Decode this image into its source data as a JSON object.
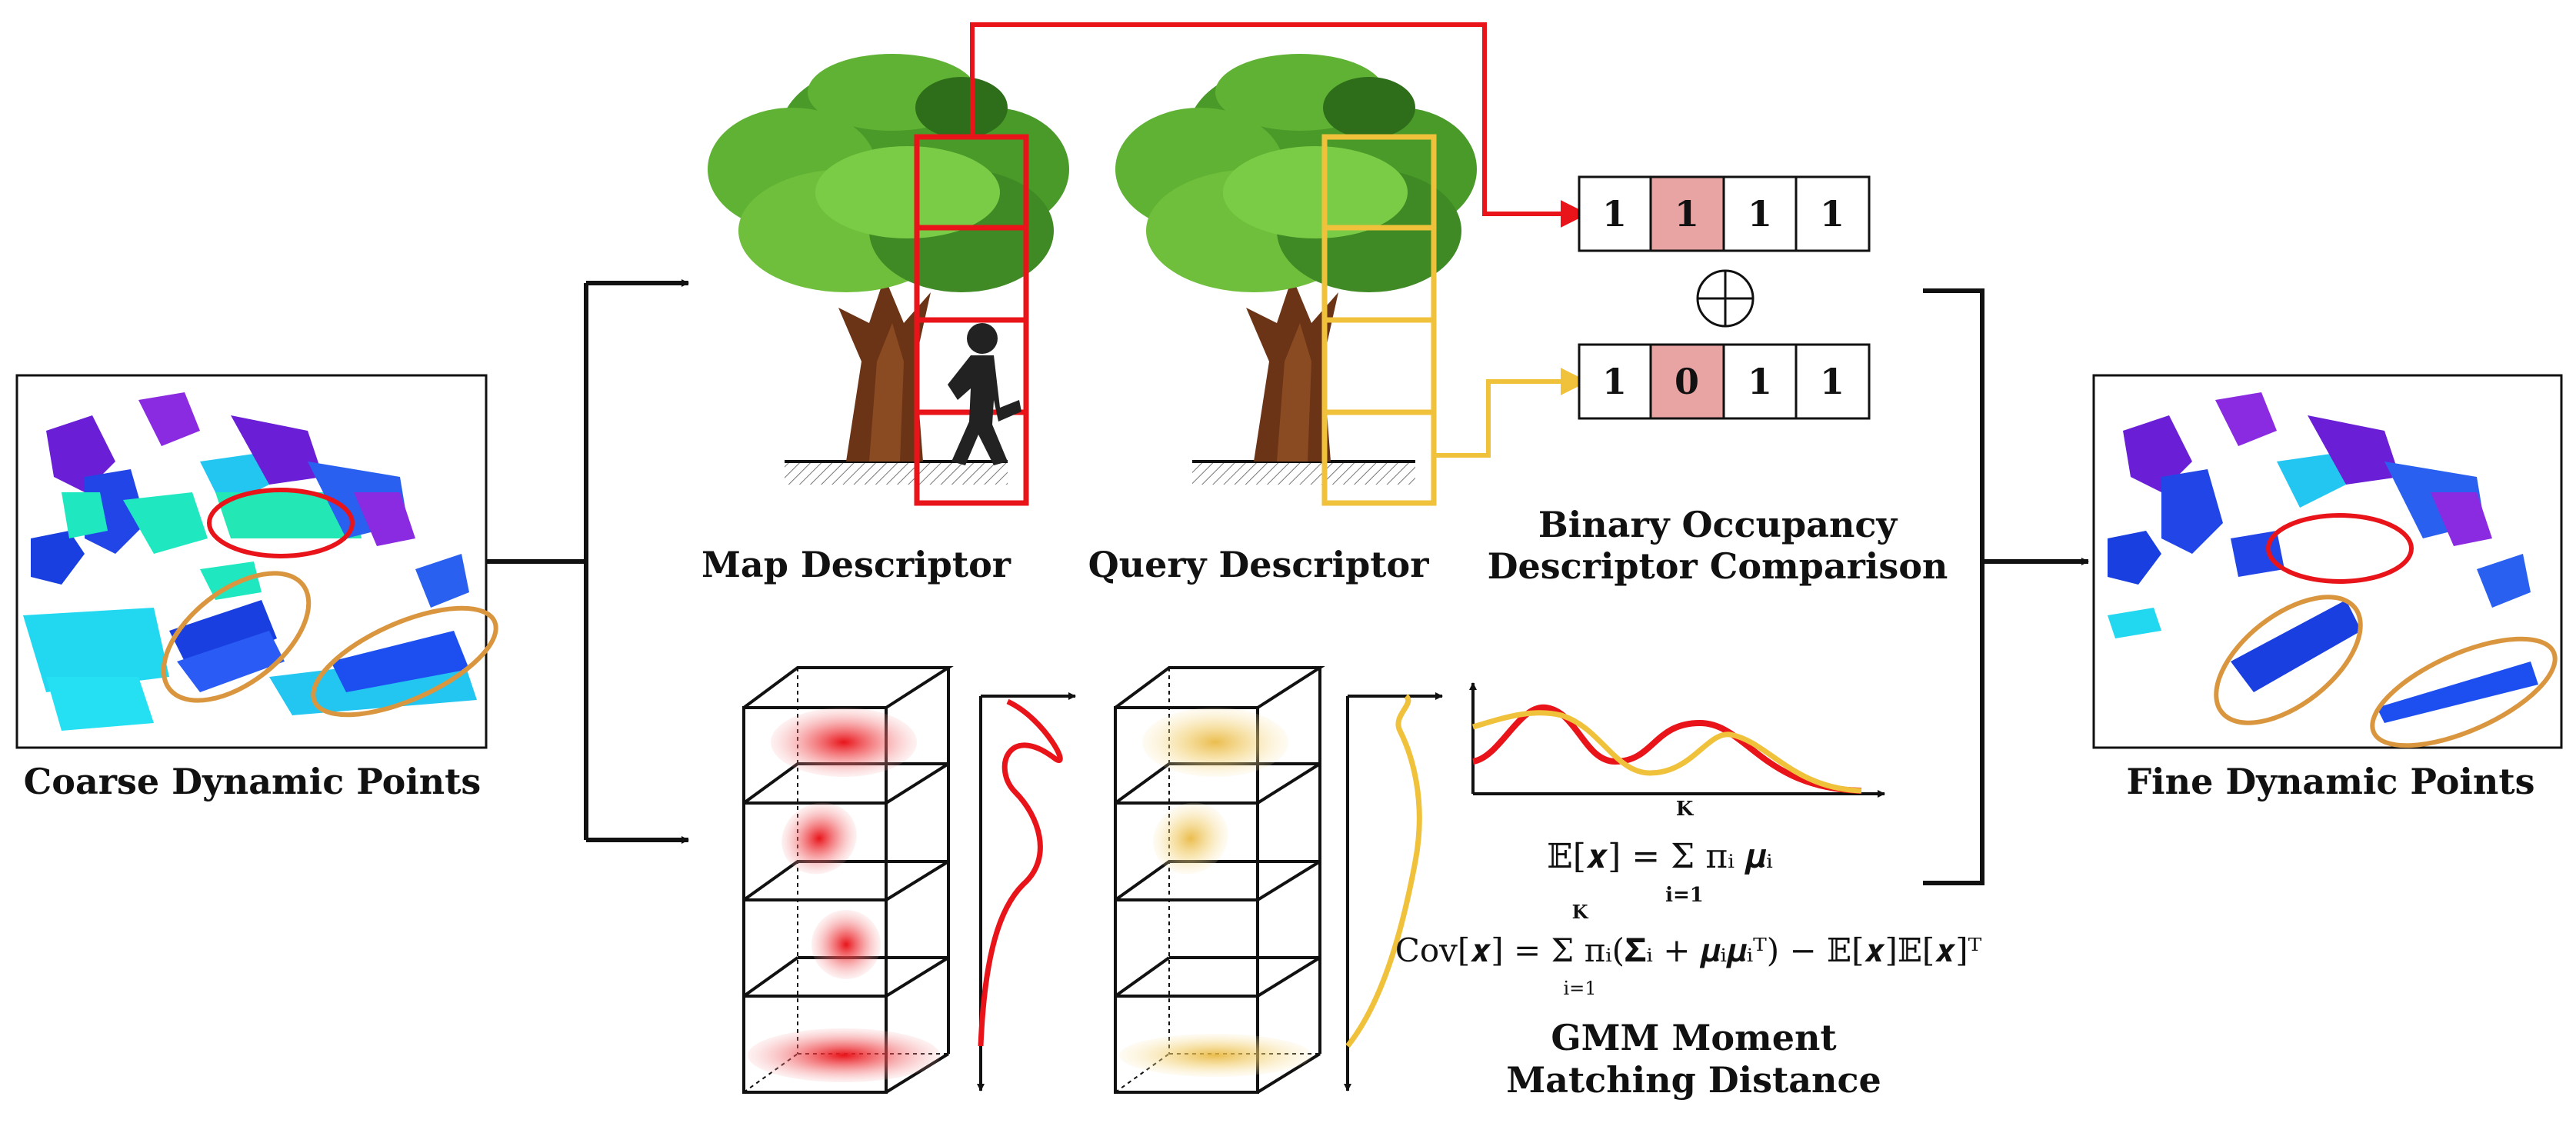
{
  "captions": {
    "coarse": "Coarse Dynamic Points",
    "fine": "Fine Dynamic Points",
    "map_descriptor": "Map Descriptor",
    "query_descriptor": "Query Descriptor",
    "binary_line1": "Binary Occupancy",
    "binary_line2": "Descriptor Comparison",
    "gmm_line1": "GMM Moment",
    "gmm_line2": "Matching Distance"
  },
  "binary": {
    "map_bits": [
      "1",
      "1",
      "1",
      "1"
    ],
    "query_bits": [
      "1",
      "0",
      "1",
      "1"
    ],
    "highlight_index": 1,
    "operator": "⊕"
  },
  "equations": {
    "mean": "𝔼[𝒙] = Σ πᵢ 𝝁ᵢ",
    "mean_upper": "K",
    "mean_lower": "i=1",
    "cov": "Cov[𝒙] = Σ πᵢ(𝚺ᵢ + 𝝁ᵢ𝝁ᵢᵀ) − 𝔼[𝒙]𝔼[𝒙]ᵀ",
    "cov_upper": "K",
    "cov_lower": "i=1"
  },
  "colors": {
    "map": "#e8141a",
    "query": "#f0c13a",
    "highlight_cell": "#e8a3a3",
    "orange_ellipse": "#d9963f",
    "arrow": "#111111"
  }
}
